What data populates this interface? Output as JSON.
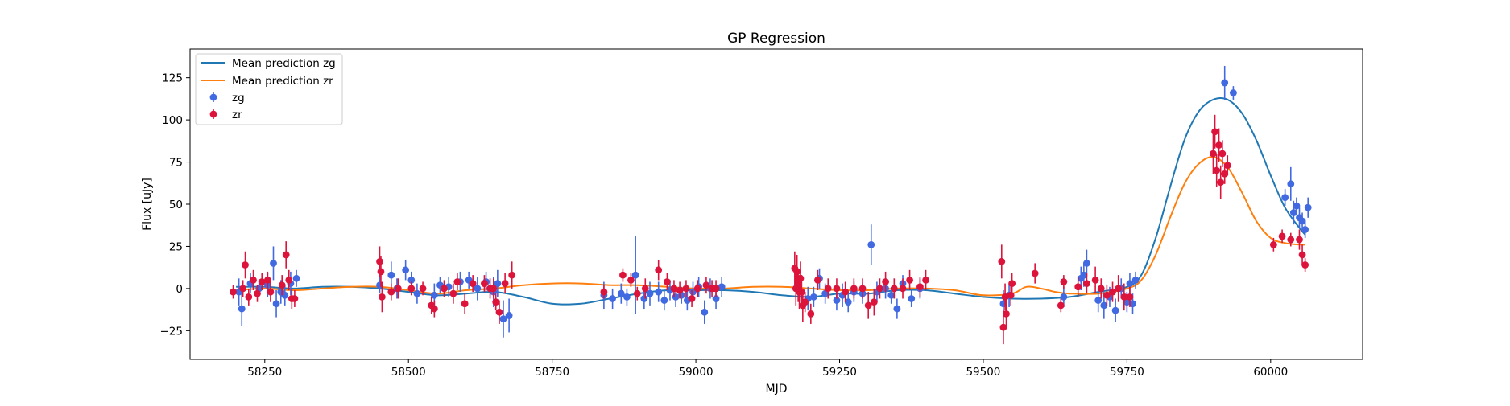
{
  "chart_data": {
    "type": "scatter",
    "title": "GP Regression",
    "xlabel": "MJD",
    "ylabel": "Flux [uJy]",
    "xlim": [
      58120,
      60160
    ],
    "ylim": [
      -42,
      142
    ],
    "xticks": [
      58250,
      58500,
      58750,
      59000,
      59250,
      59500,
      59750,
      60000
    ],
    "yticks": [
      -25,
      0,
      25,
      50,
      75,
      100,
      125
    ],
    "grid": false,
    "legend": {
      "placement": "top-left",
      "entries": [
        "Mean prediction zg",
        "Mean prediction zr",
        "zg",
        "zr"
      ]
    },
    "colors": {
      "zg_points": "#4169e1",
      "zr_points": "#dc143c",
      "zg_line": "#1f77b4",
      "zr_line": "#ff7f0e"
    },
    "lines": [
      {
        "name": "Mean prediction zg",
        "x": [
          58200,
          58250,
          58300,
          58350,
          58400,
          58450,
          58500,
          58550,
          58600,
          58650,
          58700,
          58750,
          58800,
          58850,
          58900,
          58950,
          59000,
          59050,
          59100,
          59150,
          59200,
          59250,
          59300,
          59350,
          59400,
          59450,
          59500,
          59550,
          59600,
          59650,
          59700,
          59750,
          59775,
          59800,
          59825,
          59850,
          59875,
          59900,
          59925,
          59950,
          59975,
          60000,
          60025,
          60050,
          60060
        ],
        "y": [
          1,
          1,
          0,
          1,
          1,
          0,
          -2,
          -4,
          -3,
          -2,
          -5,
          -9,
          -9,
          -6,
          -3,
          -1,
          -1,
          -1,
          -2,
          -4,
          -5,
          -3,
          -3,
          -1,
          -1,
          -3,
          -5,
          -6,
          -6,
          -5,
          -2,
          1,
          8,
          30,
          60,
          88,
          105,
          112,
          112,
          104,
          88,
          67,
          48,
          36,
          32
        ]
      },
      {
        "name": "Mean prediction zr",
        "x": [
          58200,
          58250,
          58300,
          58350,
          58400,
          58450,
          58500,
          58550,
          58600,
          58650,
          58700,
          58750,
          58800,
          58850,
          58900,
          58950,
          59000,
          59050,
          59100,
          59150,
          59200,
          59250,
          59300,
          59350,
          59400,
          59450,
          59500,
          59550,
          59575,
          59600,
          59625,
          59650,
          59700,
          59750,
          59775,
          59800,
          59825,
          59850,
          59875,
          59900,
          59925,
          59950,
          59975,
          60000,
          60025,
          60050,
          60060
        ],
        "y": [
          -1,
          0,
          -1,
          0,
          1,
          1,
          -1,
          -3,
          -1,
          0,
          2,
          3,
          3,
          2,
          2,
          1,
          0,
          0,
          1,
          1,
          0,
          -1,
          -1,
          0,
          0,
          -1,
          -4,
          -3,
          1,
          0,
          -2,
          -3,
          -3,
          0,
          5,
          20,
          42,
          62,
          74,
          78,
          72,
          57,
          40,
          30,
          27,
          26,
          26
        ]
      }
    ],
    "series": [
      {
        "name": "zg",
        "x": [
          58205,
          58210,
          58225,
          58240,
          58255,
          58265,
          58270,
          58278,
          58285,
          58295,
          58305,
          58450,
          58470,
          58480,
          58495,
          58505,
          58515,
          58545,
          58555,
          58570,
          58590,
          58605,
          58620,
          58635,
          58648,
          58655,
          58665,
          58675,
          58840,
          58855,
          58870,
          58880,
          58895,
          58910,
          58920,
          58935,
          58945,
          58955,
          58965,
          58975,
          58985,
          58995,
          59005,
          59015,
          59025,
          59035,
          59045,
          59180,
          59195,
          59205,
          59215,
          59225,
          59245,
          59255,
          59265,
          59275,
          59290,
          59305,
          59315,
          59330,
          59340,
          59350,
          59360,
          59375,
          59390,
          59535,
          59545,
          59640,
          59670,
          59675,
          59680,
          59700,
          59710,
          59720,
          59730,
          59740,
          59750,
          59755,
          59760,
          59765,
          59920,
          59935,
          60025,
          60035,
          60040,
          60045,
          60050,
          60055,
          60060,
          60065
        ],
        "y": [
          -2,
          -12,
          3,
          0,
          2,
          15,
          -9,
          -2,
          -4,
          3,
          6,
          2,
          8,
          0,
          11,
          5,
          -3,
          -4,
          2,
          1,
          4,
          5,
          0,
          4,
          -2,
          3,
          -18,
          -16,
          -4,
          -6,
          -3,
          -5,
          8,
          -6,
          -3,
          -2,
          -7,
          -1,
          -5,
          -4,
          -7,
          -2,
          1,
          -14,
          0,
          -6,
          1,
          -2,
          -6,
          -5,
          6,
          -3,
          -7,
          -4,
          -8,
          -2,
          -3,
          26,
          -2,
          0,
          -4,
          -12,
          3,
          -6,
          0,
          -9,
          -4,
          -5,
          6,
          8,
          15,
          -7,
          -10,
          -5,
          -13,
          0,
          -8,
          3,
          -9,
          5,
          122,
          116,
          54,
          62,
          45,
          49,
          42,
          40,
          35,
          48
        ],
        "err": [
          8,
          10,
          6,
          5,
          7,
          10,
          8,
          7,
          6,
          7,
          5,
          5,
          8,
          6,
          6,
          5,
          6,
          7,
          5,
          6,
          6,
          5,
          7,
          6,
          9,
          8,
          11,
          10,
          8,
          6,
          6,
          5,
          23,
          6,
          7,
          6,
          6,
          6,
          6,
          5,
          6,
          6,
          6,
          7,
          6,
          6,
          6,
          6,
          7,
          6,
          6,
          6,
          6,
          7,
          6,
          6,
          6,
          12,
          6,
          6,
          5,
          6,
          5,
          5,
          6,
          8,
          7,
          6,
          7,
          7,
          8,
          7,
          8,
          6,
          7,
          6,
          6,
          6,
          6,
          5,
          10,
          4,
          5,
          10,
          7,
          5,
          6,
          5,
          5,
          6
        ]
      },
      {
        "name": "zr",
        "x": [
          58195,
          58212,
          58216,
          58222,
          58230,
          58237,
          58245,
          58255,
          58260,
          58280,
          58287,
          58292,
          58297,
          58302,
          58450,
          58452,
          58454,
          58470,
          58482,
          58505,
          58525,
          58540,
          58545,
          58562,
          58578,
          58585,
          58598,
          58612,
          58632,
          58642,
          58648,
          58652,
          58658,
          58668,
          58680,
          58840,
          58873,
          58887,
          58898,
          58912,
          58935,
          58950,
          58962,
          58972,
          58983,
          58993,
          59003,
          59018,
          59028,
          59035,
          59172,
          59174,
          59176,
          59178,
          59180,
          59182,
          59184,
          59186,
          59190,
          59200,
          59212,
          59230,
          59245,
          59260,
          59275,
          59290,
          59300,
          59310,
          59320,
          59330,
          59345,
          59360,
          59372,
          59390,
          59400,
          59532,
          59535,
          59538,
          59540,
          59548,
          59550,
          59590,
          59635,
          59640,
          59665,
          59680,
          59695,
          59705,
          59715,
          59725,
          59735,
          59745,
          59755,
          59900,
          59903,
          59906,
          59910,
          59913,
          59916,
          59920,
          59925,
          60005,
          60020,
          60035,
          60050,
          60055,
          60060
        ],
        "y": [
          -2,
          0,
          14,
          -5,
          5,
          -3,
          4,
          5,
          -2,
          2,
          20,
          5,
          -6,
          -6,
          16,
          10,
          -5,
          -2,
          0,
          0,
          0,
          -10,
          -12,
          0,
          -3,
          4,
          -9,
          3,
          3,
          0,
          0,
          -8,
          -14,
          3,
          8,
          -2,
          8,
          5,
          -3,
          0,
          11,
          4,
          0,
          -1,
          0,
          -6,
          0,
          2,
          0,
          0,
          12,
          0,
          10,
          2,
          -2,
          6,
          -2,
          -10,
          -8,
          -15,
          5,
          0,
          0,
          -2,
          0,
          0,
          -10,
          -8,
          0,
          4,
          0,
          0,
          5,
          1,
          5,
          16,
          -23,
          -5,
          -15,
          -4,
          3,
          9,
          -10,
          4,
          1,
          3,
          5,
          0,
          -4,
          -2,
          0,
          -5,
          -5,
          80,
          93,
          70,
          85,
          63,
          80,
          68,
          73,
          26,
          31,
          29,
          29,
          20,
          14
        ],
        "err": [
          4,
          5,
          8,
          5,
          6,
          5,
          5,
          5,
          6,
          6,
          8,
          6,
          6,
          5,
          9,
          9,
          9,
          5,
          6,
          4,
          4,
          5,
          5,
          5,
          6,
          5,
          6,
          5,
          5,
          6,
          6,
          5,
          7,
          6,
          8,
          4,
          4,
          4,
          4,
          6,
          6,
          5,
          5,
          5,
          5,
          5,
          5,
          5,
          5,
          5,
          10,
          10,
          10,
          10,
          10,
          10,
          10,
          10,
          6,
          6,
          6,
          6,
          6,
          6,
          6,
          6,
          8,
          8,
          6,
          6,
          6,
          6,
          6,
          6,
          6,
          10,
          10,
          8,
          9,
          6,
          6,
          6,
          4,
          4,
          6,
          6,
          8,
          6,
          6,
          6,
          8,
          8,
          6,
          12,
          10,
          10,
          10,
          10,
          8,
          6,
          6,
          4,
          4,
          4,
          6,
          6,
          4
        ]
      }
    ]
  }
}
